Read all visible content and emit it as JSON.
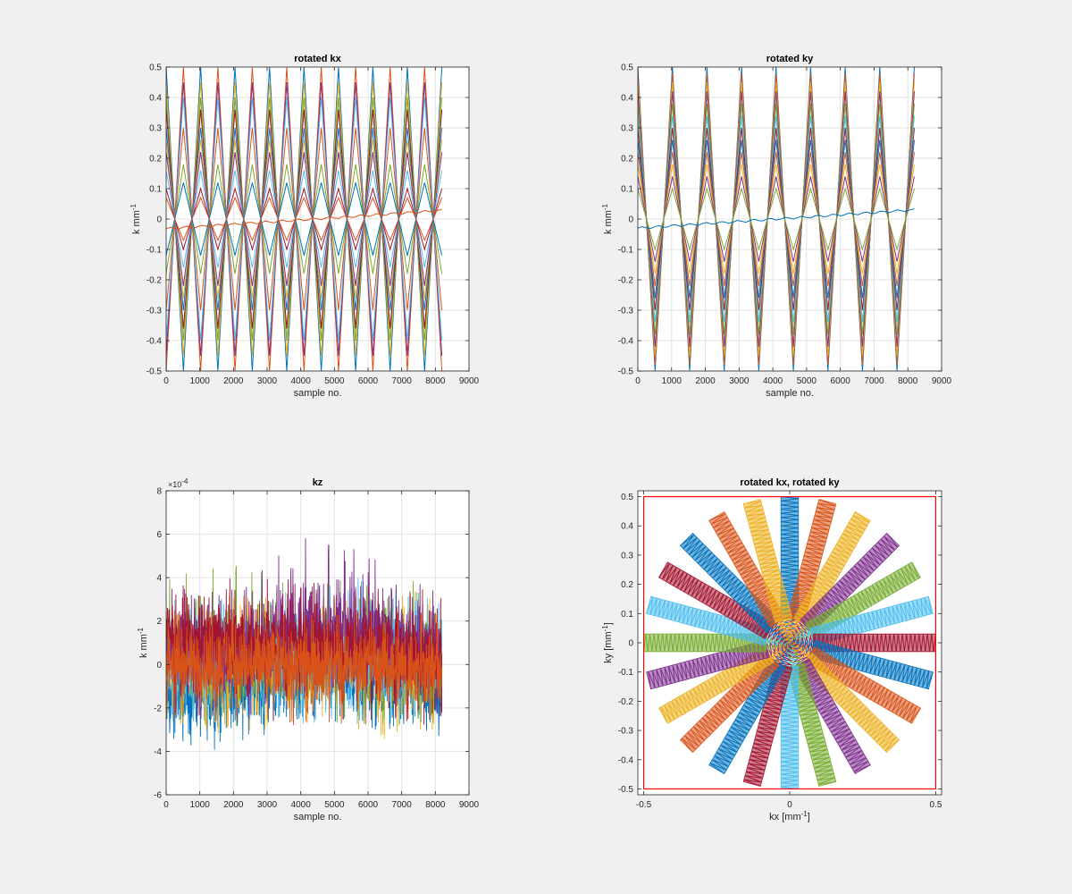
{
  "figure": {
    "background": "#f0f0f0",
    "series_colors": [
      "#0072BD",
      "#D95319",
      "#EDB120",
      "#7E2F8E",
      "#77AC30",
      "#4DBEEE",
      "#A2142F"
    ]
  },
  "chart_data": [
    {
      "id": "kx",
      "type": "line",
      "title": "rotated kx",
      "xlabel": "sample no.",
      "ylabel_main": "k mm",
      "ylabel_sup": "-1",
      "xlim": [
        0,
        9000
      ],
      "ylim": [
        -0.5,
        0.5
      ],
      "grid": true,
      "xticks": [
        "0",
        "1000",
        "2000",
        "3000",
        "4000",
        "5000",
        "6000",
        "7000",
        "8000",
        "9000"
      ],
      "yticks": [
        "-0.5",
        "-0.4",
        "-0.3",
        "-0.2",
        "-0.1",
        "0",
        "0.1",
        "0.2",
        "0.3",
        "0.4",
        "0.5"
      ],
      "x_end": 8192,
      "period_samples": 1024,
      "series_amplitudes": [
        0.5,
        -0.5,
        0.45,
        -0.45,
        0.4,
        -0.4,
        0.36,
        0.3,
        -0.3,
        0.26,
        0.22,
        -0.18,
        0.16,
        0.1,
        -0.12,
        0.07
      ],
      "drift_line": {
        "from": -0.032,
        "to": 0.028
      }
    },
    {
      "id": "ky",
      "type": "line",
      "title": "rotated ky",
      "xlabel": "sample no.",
      "ylabel_main": "k mm",
      "ylabel_sup": "-1",
      "xlim": [
        0,
        9000
      ],
      "ylim": [
        -0.5,
        0.5
      ],
      "grid": true,
      "xticks": [
        "0",
        "1000",
        "2000",
        "3000",
        "4000",
        "5000",
        "6000",
        "7000",
        "8000",
        "9000"
      ],
      "yticks": [
        "-0.5",
        "-0.4",
        "-0.3",
        "-0.2",
        "-0.1",
        "0",
        "0.1",
        "0.2",
        "0.3",
        "0.4",
        "0.5"
      ],
      "x_end": 8192,
      "period_samples": 1024,
      "series_amplitudes": [
        0.5,
        0.48,
        0.45,
        0.42,
        0.38,
        0.34,
        0.3,
        0.26,
        0.22,
        0.18,
        0.14,
        0.1
      ],
      "drift_line": {
        "from": -0.03,
        "to": 0.03
      }
    },
    {
      "id": "kz",
      "type": "line",
      "title": "kz",
      "xlabel": "sample no.",
      "ylabel_main": "k mm",
      "ylabel_sup": "-1",
      "exponent_label": "×10",
      "exponent_sup": "-4",
      "xlim": [
        0,
        9000
      ],
      "ylim": [
        -6,
        8
      ],
      "grid": true,
      "xticks": [
        "0",
        "1000",
        "2000",
        "3000",
        "4000",
        "5000",
        "6000",
        "7000",
        "8000",
        "9000"
      ],
      "yticks": [
        "-6",
        "-4",
        "-2",
        "0",
        "2",
        "4",
        "6",
        "8"
      ],
      "x_end": 8192,
      "noise_series": [
        {
          "color_index": 0,
          "upper": [
            2.2,
            2.0,
            2.5,
            2.2,
            2.0
          ],
          "lower": [
            -4.5,
            -4.0,
            -2.5,
            -3.0,
            -3.5
          ],
          "offset": [
            -1.5,
            -1.2,
            -0.5,
            -0.6,
            -1.0
          ]
        },
        {
          "color_index": 2,
          "upper": [
            3.5,
            3.2,
            3.0,
            3.6,
            3.3
          ],
          "lower": [
            -3.0,
            -3.2,
            -2.8,
            -3.5,
            -3.0
          ],
          "offset": [
            0.2,
            0.0,
            -0.2,
            0.1,
            0.0
          ]
        },
        {
          "color_index": 4,
          "upper": [
            4.0,
            4.8,
            4.0,
            4.5,
            3.5
          ],
          "lower": [
            -2.5,
            -2.8,
            -2.6,
            -2.8,
            -2.5
          ],
          "offset": [
            0.5,
            0.6,
            0.4,
            0.6,
            0.4
          ]
        },
        {
          "color_index": 5,
          "upper": [
            3.0,
            3.2,
            3.4,
            4.2,
            3.0
          ],
          "lower": [
            -2.8,
            -2.5,
            -2.8,
            -2.8,
            -3.0
          ],
          "offset": [
            0.2,
            0.2,
            0.3,
            0.5,
            0.1
          ]
        },
        {
          "color_index": 3,
          "upper": [
            3.5,
            3.5,
            6.0,
            5.5,
            3.5
          ],
          "lower": [
            -2.5,
            -2.5,
            -2.8,
            -2.8,
            -2.5
          ],
          "offset": [
            0.6,
            0.6,
            1.5,
            1.4,
            0.5
          ]
        },
        {
          "color_index": 6,
          "upper": [
            4.5,
            4.0,
            4.0,
            3.5,
            3.5
          ],
          "lower": [
            -1.5,
            -1.5,
            -1.5,
            -2.0,
            -3.5
          ],
          "offset": [
            1.2,
            1.0,
            1.0,
            0.8,
            0.2
          ]
        },
        {
          "color_index": 1,
          "upper": [
            2.5,
            2.5,
            2.5,
            2.5,
            2.5
          ],
          "lower": [
            -2.5,
            -2.8,
            -2.8,
            -2.8,
            -2.8
          ],
          "offset": [
            0.0,
            0.0,
            0.0,
            0.0,
            -0.2
          ]
        }
      ]
    },
    {
      "id": "kxky",
      "type": "line",
      "title": "rotated kx, rotated ky",
      "xlabel_main": "kx [mm",
      "xlabel_sup": "-1",
      "xlabel_end": "]",
      "ylabel_main": "ky [mm",
      "ylabel_sup": "-1",
      "ylabel_end": "]",
      "xlim": [
        -0.52,
        0.52
      ],
      "ylim": [
        -0.52,
        0.52
      ],
      "grid": false,
      "xticks": [
        "-0.5",
        "0",
        "0.5"
      ],
      "yticks": [
        "-0.5",
        "-0.4",
        "-0.3",
        "-0.2",
        "-0.1",
        "0",
        "0.1",
        "0.2",
        "0.3",
        "0.4",
        "0.5"
      ],
      "spoke_count": 24,
      "spoke_max_radius": 0.5,
      "spoke_half_width": 0.03,
      "boundary_box": [
        -0.5,
        0.5,
        -0.5,
        0.5
      ],
      "boundary_color": "#FF0000"
    }
  ]
}
